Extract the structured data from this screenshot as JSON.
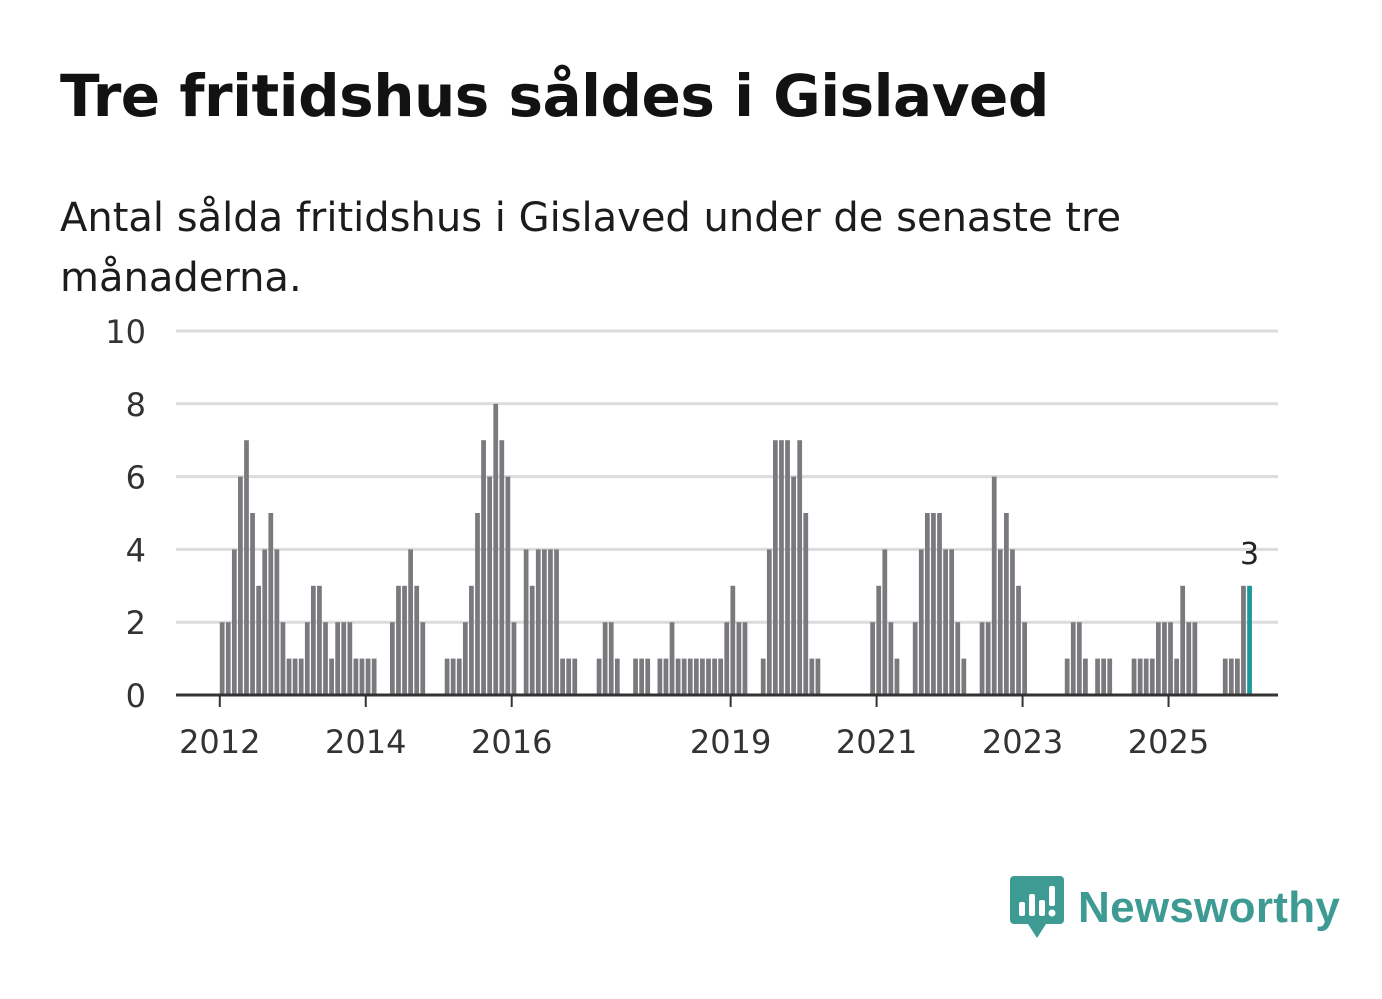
{
  "chart_data": {
    "type": "bar",
    "title": "Tre fritidshus såldes i Gislaved",
    "subtitle": "Antal sålda fritidshus i Gislaved under de senaste tre månaderna.",
    "xlabel": "",
    "ylabel": "",
    "ylim": [
      0,
      10
    ],
    "yticks": [
      "0",
      "2",
      "4",
      "6",
      "8",
      "10"
    ],
    "x_range": [
      2011.4,
      2026.5
    ],
    "xticks": [
      {
        "label": "2012",
        "year": 2012
      },
      {
        "label": "2014",
        "year": 2014
      },
      {
        "label": "2016",
        "year": 2016
      },
      {
        "label": "2019",
        "year": 2019
      },
      {
        "label": "2021",
        "year": 2021
      },
      {
        "label": "2023",
        "year": 2023
      },
      {
        "label": "2025",
        "year": 2025
      }
    ],
    "series": [
      {
        "name": "Antal sålda fritidshus",
        "start": 2012.0,
        "step": 0.0833,
        "values": [
          2,
          2,
          4,
          6,
          7,
          5,
          3,
          4,
          5,
          4,
          2,
          1,
          1,
          1,
          2,
          3,
          3,
          2,
          1,
          2,
          2,
          2,
          1,
          1,
          1,
          1,
          0,
          0,
          2,
          3,
          3,
          4,
          3,
          2,
          0,
          0,
          0,
          1,
          1,
          1,
          2,
          3,
          5,
          7,
          6,
          8,
          7,
          6,
          2,
          0,
          4,
          3,
          4,
          4,
          4,
          4,
          1,
          1,
          1,
          0,
          0,
          0,
          1,
          2,
          2,
          1,
          0,
          0,
          1,
          1,
          1,
          0,
          1,
          1,
          2,
          1,
          1,
          1,
          1,
          1,
          1,
          1,
          1,
          2,
          3,
          2,
          2,
          0,
          0,
          1,
          4,
          7,
          7,
          7,
          6,
          7,
          5,
          1,
          1,
          0,
          0,
          0,
          0,
          0,
          0,
          0,
          0,
          2,
          3,
          4,
          2,
          1,
          0,
          0,
          2,
          4,
          5,
          5,
          5,
          4,
          4,
          2,
          1,
          0,
          0,
          2,
          2,
          6,
          4,
          5,
          4,
          3,
          2,
          0,
          0,
          0,
          0,
          0,
          0,
          1,
          2,
          2,
          1,
          0,
          1,
          1,
          1,
          0,
          0,
          0,
          1,
          1,
          1,
          1,
          2,
          2,
          2,
          1,
          3,
          2,
          2,
          0,
          0,
          0,
          0,
          1,
          1,
          1,
          3,
          3
        ]
      }
    ],
    "highlight": {
      "value_label": "3",
      "color": "#1a9a9a"
    },
    "bar_color": "#7a7a7e",
    "grid": true
  },
  "brand": {
    "name": "Newsworthy",
    "color": "#3d9b93"
  }
}
